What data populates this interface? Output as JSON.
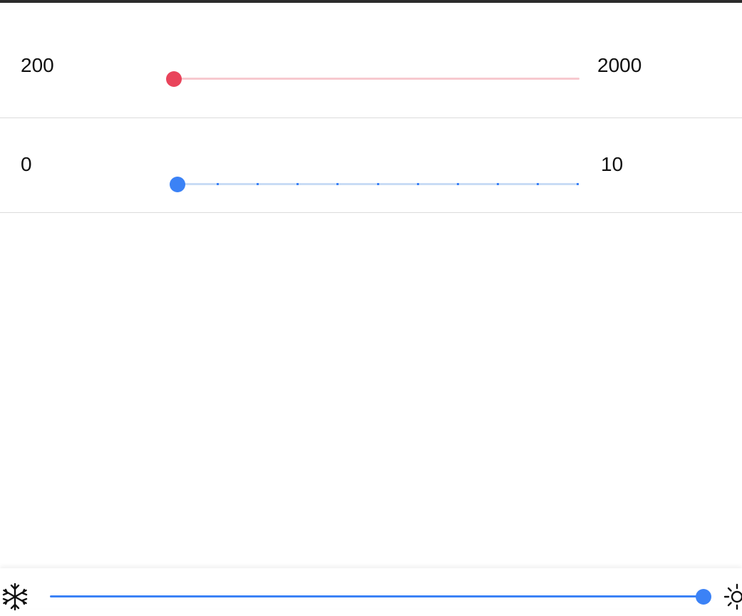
{
  "range_slider": {
    "min_label": "200",
    "max_label": "2000",
    "value": 200,
    "min": 200,
    "max": 2000,
    "color": "#e9445b",
    "track_color": "#f7c9cf"
  },
  "step_slider": {
    "min_label": "0",
    "max_label": "10",
    "value": 0,
    "min": 0,
    "max": 10,
    "step": 1,
    "color": "#3b82f6",
    "track_color": "#c9dcf5"
  },
  "temperature_bar": {
    "left_icon": "snowflake-icon",
    "right_icon": "sun-icon",
    "value_fraction": 1.0,
    "color": "#3b82f6"
  }
}
